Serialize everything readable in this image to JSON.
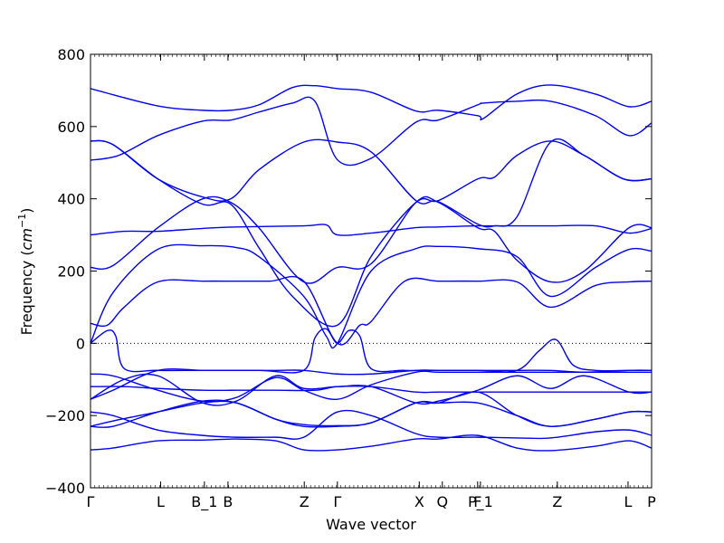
{
  "chart_data": {
    "type": "line",
    "xlabel": "Wave vector",
    "ylabel": "Frequency ($cm^{-1}$)",
    "ylim": [
      -400,
      800
    ],
    "xlim": [
      0,
      1
    ],
    "y_ticks": [
      -400,
      -200,
      0,
      200,
      400,
      600,
      800
    ],
    "x_tick_labels": [
      {
        "label": "Γ",
        "pos": 0.0
      },
      {
        "label": "L",
        "pos": 0.125
      },
      {
        "label": "B_1",
        "pos": 0.203
      },
      {
        "label": "B",
        "pos": 0.245
      },
      {
        "label": "Z",
        "pos": 0.381
      },
      {
        "label": "Γ",
        "pos": 0.44
      },
      {
        "label": "X",
        "pos": 0.586
      },
      {
        "label": "Q",
        "pos": 0.627
      },
      {
        "label": "F",
        "pos": 0.69
      },
      {
        "label": "P_1",
        "pos": 0.695
      },
      {
        "label": "Z",
        "pos": 0.832
      },
      {
        "label": "L",
        "pos": 0.958
      },
      {
        "label": "P",
        "pos": 1.0
      }
    ],
    "zero_line": true,
    "line_color": "#0000ee",
    "series": [
      {
        "x": [
          0,
          0.12,
          0.2,
          0.25,
          0.3,
          0.36,
          0.4,
          0.44,
          0.5,
          0.58,
          0.62,
          0.69,
          0.7,
          0.76,
          0.82,
          0.9,
          0.96,
          1.0
        ],
        "y": [
          705,
          657,
          645,
          645,
          660,
          708,
          713,
          705,
          695,
          643,
          645,
          630,
          622,
          690,
          715,
          690,
          655,
          670
        ]
      },
      {
        "x": [
          0,
          0.05,
          0.12,
          0.2,
          0.25,
          0.3,
          0.36,
          0.4,
          0.44,
          0.5,
          0.58,
          0.62,
          0.69,
          0.7,
          0.76,
          0.82,
          0.9,
          0.96,
          1.0
        ],
        "y": [
          507,
          520,
          575,
          615,
          618,
          640,
          665,
          670,
          508,
          512,
          612,
          618,
          660,
          665,
          670,
          670,
          630,
          575,
          610
        ]
      },
      {
        "x": [
          0,
          0.04,
          0.12,
          0.2,
          0.25,
          0.3,
          0.36,
          0.44,
          0.5,
          0.58,
          0.62,
          0.69,
          0.72,
          0.76,
          0.82,
          0.88,
          0.95,
          1.0
        ],
        "y": [
          560,
          550,
          455,
          385,
          385,
          265,
          130,
          50,
          240,
          390,
          395,
          455,
          460,
          520,
          560,
          520,
          455,
          455
        ]
      },
      {
        "x": [
          0,
          0.04,
          0.12,
          0.2,
          0.25,
          0.3,
          0.38,
          0.44,
          0.5,
          0.58,
          0.62,
          0.69,
          0.72,
          0.76,
          0.82,
          0.88,
          0.95,
          1.0
        ],
        "y": [
          560,
          550,
          455,
          405,
          400,
          480,
          557,
          557,
          530,
          395,
          392,
          330,
          325,
          350,
          557,
          520,
          455,
          455
        ]
      },
      {
        "x": [
          0,
          0.06,
          0.12,
          0.2,
          0.26,
          0.38,
          0.42,
          0.44,
          0.5,
          0.58,
          0.62,
          0.69,
          0.76,
          0.82,
          0.9,
          0.96,
          1.0
        ],
        "y": [
          300,
          310,
          310,
          318,
          322,
          325,
          328,
          300,
          305,
          320,
          322,
          325,
          325,
          325,
          325,
          305,
          318
        ]
      },
      {
        "x": [
          0,
          0.04,
          0.12,
          0.2,
          0.25,
          0.3,
          0.38,
          0.44,
          0.5,
          0.58,
          0.62,
          0.69,
          0.72,
          0.76,
          0.82,
          0.88,
          0.96,
          1.0
        ],
        "y": [
          210,
          215,
          320,
          400,
          390,
          320,
          170,
          210,
          220,
          390,
          390,
          320,
          310,
          230,
          170,
          200,
          320,
          320
        ]
      },
      {
        "x": [
          0,
          0.04,
          0.12,
          0.2,
          0.26,
          0.3,
          0.38,
          0.42,
          0.44,
          0.5,
          0.58,
          0.62,
          0.69,
          0.76,
          0.82,
          0.9,
          0.96,
          1.0
        ],
        "y": [
          0,
          140,
          260,
          270,
          265,
          240,
          130,
          20,
          0,
          200,
          262,
          268,
          262,
          240,
          130,
          210,
          260,
          255
        ]
      },
      {
        "x": [
          0,
          0.03,
          0.06,
          0.12,
          0.2,
          0.26,
          0.32,
          0.38,
          0.44,
          0.48,
          0.5,
          0.56,
          0.62,
          0.69,
          0.76,
          0.82,
          0.9,
          0.96,
          1.0
        ],
        "y": [
          55,
          50,
          100,
          170,
          172,
          172,
          172,
          172,
          0,
          50,
          60,
          172,
          172,
          172,
          170,
          100,
          160,
          170,
          172
        ]
      },
      {
        "x": [
          0,
          0.03,
          0.045,
          0.06,
          0.12,
          0.2,
          0.3,
          0.38,
          0.4,
          0.42,
          0.44,
          0.46,
          0.48,
          0.5,
          0.56,
          0.62,
          0.69,
          0.76,
          0.8,
          0.83,
          0.86,
          0.9,
          0.96,
          1.0
        ],
        "y": [
          0,
          35,
          20,
          -70,
          -75,
          -75,
          -75,
          -75,
          15,
          40,
          0,
          35,
          20,
          -70,
          -75,
          -75,
          -75,
          -75,
          -20,
          10,
          -60,
          -75,
          -75,
          -75
        ]
      },
      {
        "x": [
          0,
          0.04,
          0.12,
          0.2,
          0.26,
          0.33,
          0.38,
          0.44,
          0.5,
          0.58,
          0.62,
          0.69,
          0.76,
          0.82,
          0.9,
          0.96,
          1.0
        ],
        "y": [
          -85,
          -90,
          -130,
          -160,
          -150,
          -95,
          -130,
          -155,
          -115,
          -80,
          -80,
          -80,
          -80,
          -80,
          -80,
          -80,
          -80
        ]
      },
      {
        "x": [
          0,
          0.04,
          0.12,
          0.2,
          0.26,
          0.33,
          0.38,
          0.44,
          0.5,
          0.58,
          0.62,
          0.69,
          0.76,
          0.82,
          0.88,
          0.96,
          1.0
        ],
        "y": [
          -155,
          -130,
          -75,
          -75,
          -75,
          -75,
          -75,
          -85,
          -85,
          -75,
          -75,
          -75,
          -75,
          -75,
          -80,
          -75,
          -75
        ]
      },
      {
        "x": [
          0,
          0.06,
          0.12,
          0.2,
          0.26,
          0.33,
          0.4,
          0.44,
          0.5,
          0.58,
          0.62,
          0.69,
          0.76,
          0.82,
          0.88,
          0.96,
          1.0
        ],
        "y": [
          -120,
          -120,
          -125,
          -130,
          -130,
          -130,
          -130,
          -120,
          -120,
          -135,
          -135,
          -135,
          -135,
          -135,
          -135,
          -135,
          -135
        ]
      },
      {
        "x": [
          0,
          0.06,
          0.12,
          0.2,
          0.26,
          0.33,
          0.38,
          0.44,
          0.5,
          0.58,
          0.62,
          0.69,
          0.76,
          0.82,
          0.88,
          0.96,
          1.0
        ],
        "y": [
          -155,
          -100,
          -90,
          -165,
          -160,
          -90,
          -125,
          -120,
          -120,
          -165,
          -160,
          -130,
          -90,
          -125,
          -90,
          -135,
          -135
        ]
      },
      {
        "x": [
          0,
          0.04,
          0.12,
          0.2,
          0.26,
          0.33,
          0.38,
          0.44,
          0.5,
          0.58,
          0.62,
          0.69,
          0.76,
          0.82,
          0.9,
          0.96,
          1.0
        ],
        "y": [
          -190,
          -200,
          -240,
          -255,
          -260,
          -260,
          -260,
          -190,
          -200,
          -250,
          -260,
          -260,
          -262,
          -262,
          -245,
          -240,
          -255
        ]
      },
      {
        "x": [
          0,
          0.04,
          0.12,
          0.2,
          0.26,
          0.33,
          0.38,
          0.44,
          0.5,
          0.58,
          0.62,
          0.69,
          0.76,
          0.82,
          0.9,
          0.96,
          1.0
        ],
        "y": [
          -230,
          -215,
          -190,
          -165,
          -165,
          -210,
          -230,
          -230,
          -220,
          -165,
          -165,
          -135,
          -200,
          -230,
          -210,
          -190,
          -190
        ]
      },
      {
        "x": [
          0,
          0.04,
          0.12,
          0.2,
          0.26,
          0.33,
          0.38,
          0.44,
          0.5,
          0.58,
          0.62,
          0.69,
          0.76,
          0.82,
          0.9,
          0.96,
          1.0
        ],
        "y": [
          -230,
          -230,
          -190,
          -160,
          -165,
          -210,
          -225,
          -228,
          -220,
          -165,
          -165,
          -165,
          -200,
          -230,
          -210,
          -190,
          -190
        ]
      },
      {
        "x": [
          0,
          0.04,
          0.12,
          0.2,
          0.26,
          0.33,
          0.38,
          0.44,
          0.5,
          0.58,
          0.62,
          0.69,
          0.76,
          0.82,
          0.9,
          0.96,
          1.0
        ],
        "y": [
          -295,
          -290,
          -270,
          -268,
          -265,
          -270,
          -295,
          -295,
          -285,
          -265,
          -265,
          -255,
          -290,
          -297,
          -285,
          -270,
          -290
        ]
      }
    ]
  }
}
